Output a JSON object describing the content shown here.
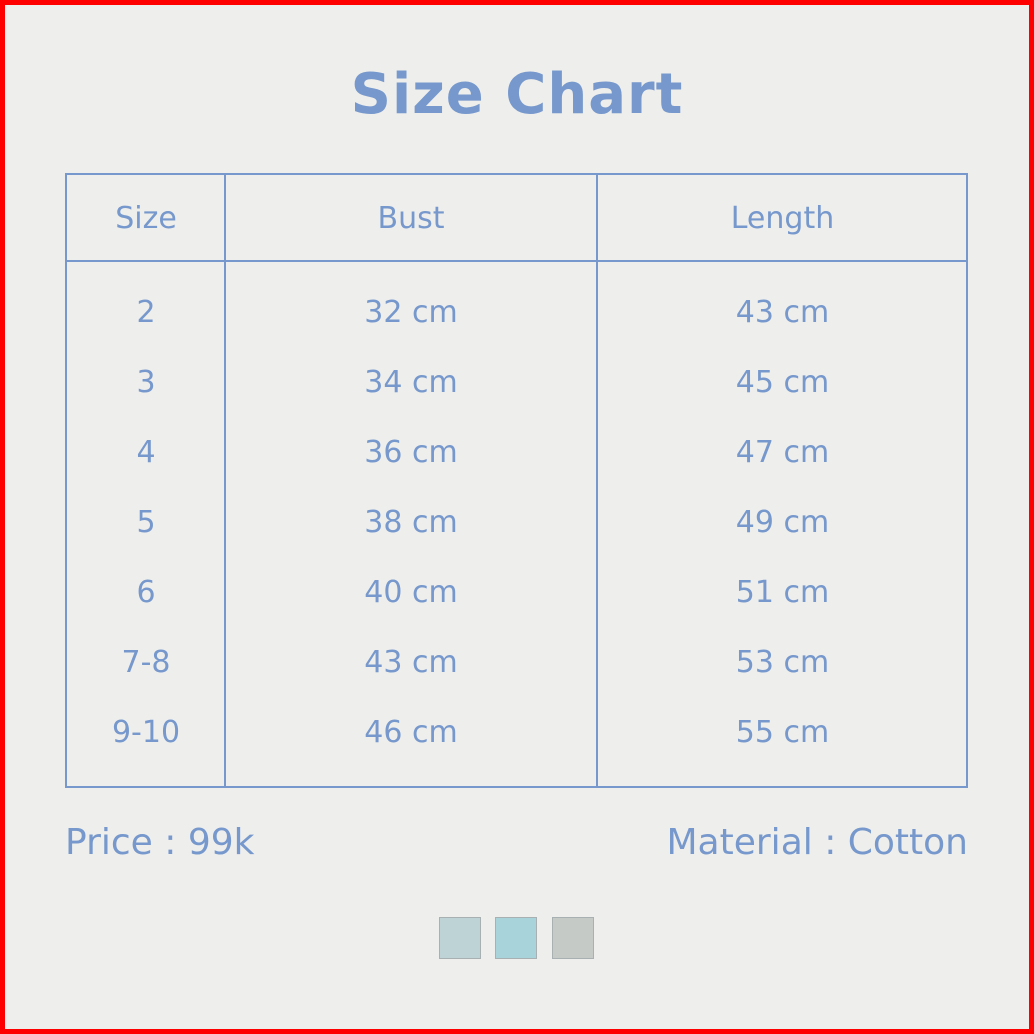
{
  "title": "Size Chart",
  "table": {
    "headers": [
      "Size",
      "Bust",
      "Length"
    ],
    "rows": [
      [
        "2",
        "32 cm",
        "43 cm"
      ],
      [
        "3",
        "34 cm",
        "45 cm"
      ],
      [
        "4",
        "36 cm",
        "47 cm"
      ],
      [
        "5",
        "38 cm",
        "49 cm"
      ],
      [
        "6",
        "40 cm",
        "51 cm"
      ],
      [
        "7-8",
        "43 cm",
        "53 cm"
      ],
      [
        "9-10",
        "46 cm",
        "55 cm"
      ]
    ]
  },
  "price": "Price : 99k",
  "material": "Material : Cotton",
  "swatches": [
    "#bdd3d6",
    "#a8d3da",
    "#c6cac6"
  ],
  "colors": {
    "text": "#7698cc",
    "background": "#eeeeec",
    "border": "#ff0000"
  }
}
